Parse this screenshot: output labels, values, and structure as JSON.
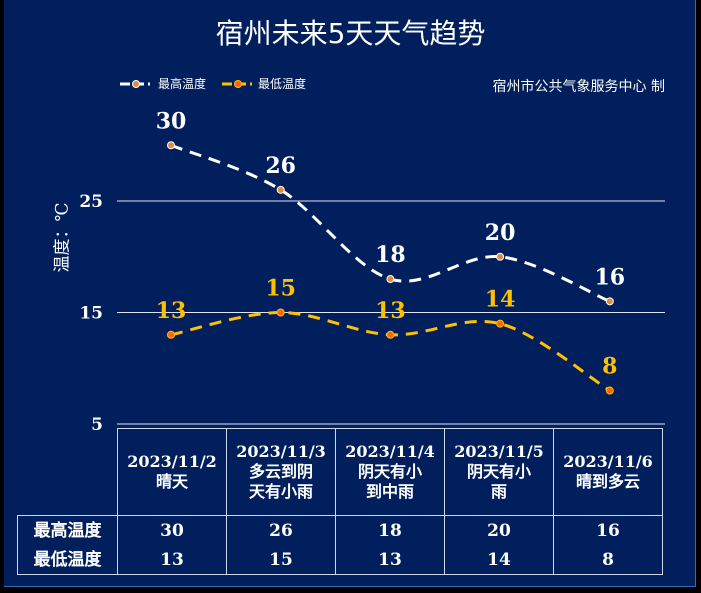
{
  "chart_data": {
    "type": "line",
    "title": "宿州未来5天天气趋势",
    "credit": "宿州市公共气象服务中心  制",
    "ylabel": "温度：℃",
    "ylim": [
      5,
      35
    ],
    "yticks": [
      5,
      15,
      25
    ],
    "grid": true,
    "legend_position": "top-left",
    "categories": [
      "2023/11/2",
      "2023/11/3",
      "2023/11/4",
      "2023/11/5",
      "2023/11/6"
    ],
    "weather": [
      "晴天",
      "多云到阴天有小雨",
      "阴天有小到中雨",
      "阴天有小雨",
      "晴到多云"
    ],
    "weather_lines": [
      [
        "晴天"
      ],
      [
        "多云到阴",
        "天有小雨"
      ],
      [
        "阴天有小",
        "到中雨"
      ],
      [
        "阴天有小",
        "雨"
      ],
      [
        "晴到多云"
      ]
    ],
    "series": [
      {
        "name": "最高温度",
        "values": [
          30,
          26,
          18,
          20,
          16
        ],
        "color": "#ffffff",
        "marker": "#e08a40"
      },
      {
        "name": "最低温度",
        "values": [
          13,
          15,
          13,
          14,
          8
        ],
        "color": "#ffc000",
        "marker": "#ff6600"
      }
    ]
  }
}
